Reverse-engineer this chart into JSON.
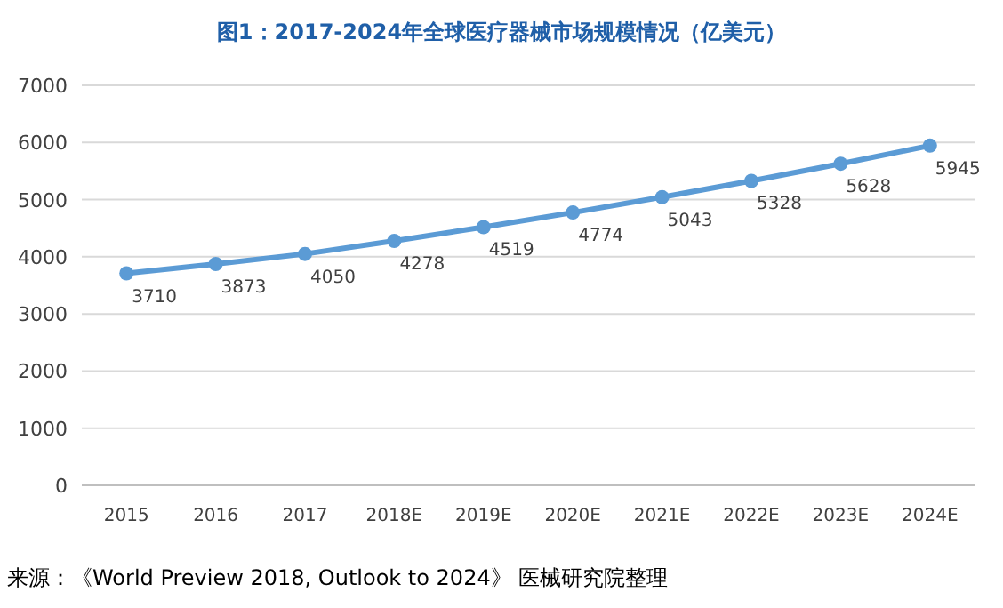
{
  "chart_data": {
    "type": "line",
    "title": "图1：2017-2024年全球医疗器械市场规模情况（亿美元）",
    "categories": [
      "2015",
      "2016",
      "2017",
      "2018E",
      "2019E",
      "2020E",
      "2021E",
      "2022E",
      "2023E",
      "2024E"
    ],
    "values": [
      3710,
      3873,
      4050,
      4278,
      4519,
      4774,
      5043,
      5328,
      5628,
      5945
    ],
    "color": "#5b9bd5",
    "ylim": [
      0,
      7000
    ],
    "yticks": [
      0,
      1000,
      2000,
      3000,
      4000,
      5000,
      6000,
      7000
    ],
    "grid": "y",
    "marker": "circle",
    "data_labels": true,
    "annotations": [
      "来源：《World Preview 2018, Outlook to 2024》 医械研究院整理"
    ]
  }
}
